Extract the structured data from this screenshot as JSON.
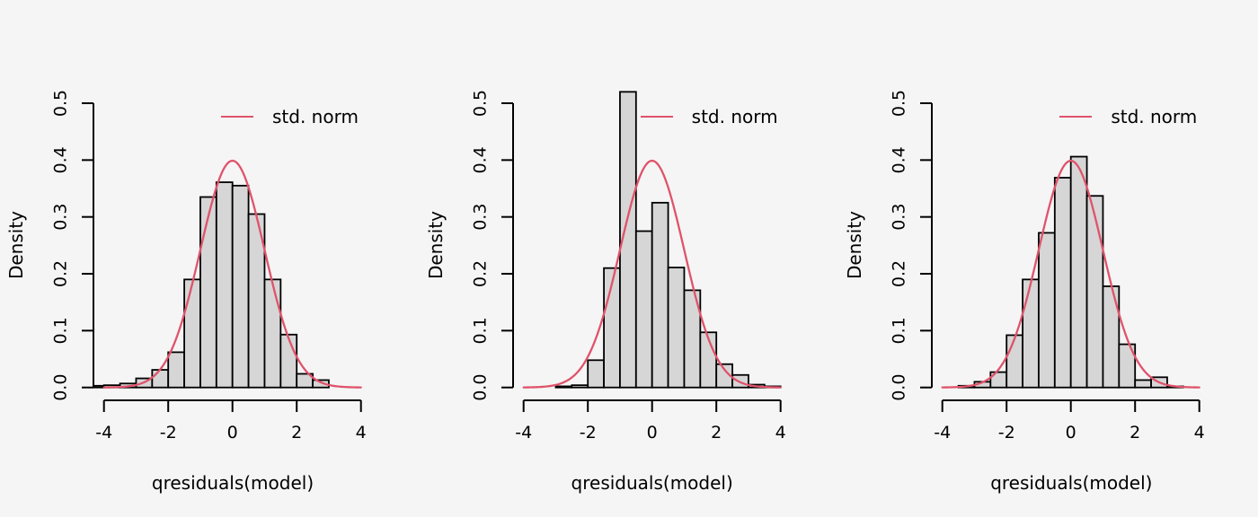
{
  "colors": {
    "background": "#f5f5f5",
    "bar_fill": "#d6d6d6",
    "bar_stroke": "#000000",
    "curve": "#DF536B",
    "axis": "#000000",
    "text": "#000000"
  },
  "chart_data": [
    {
      "type": "histogram",
      "title": "",
      "xlabel": "qresiduals(model)",
      "ylabel": "Density",
      "legend": {
        "label": "std. norm",
        "position": "topright"
      },
      "xlim": [
        -4,
        4
      ],
      "ylim": [
        0,
        0.5
      ],
      "xticks": [
        "-4",
        "-2",
        "0",
        "2",
        "4"
      ],
      "yticks": [
        "0.0",
        "0.1",
        "0.2",
        "0.3",
        "0.4",
        "0.5"
      ],
      "grid": false,
      "bin_width": 0.5,
      "bin_start": -4.5,
      "densities": [
        0.003,
        0.004,
        0.007,
        0.016,
        0.031,
        0.062,
        0.19,
        0.335,
        0.361,
        0.355,
        0.305,
        0.19,
        0.093,
        0.024,
        0.013
      ],
      "curve": {
        "name": "standard normal pdf",
        "x_range": [
          -4,
          4
        ],
        "peak": 0.3989
      }
    },
    {
      "type": "histogram",
      "title": "",
      "xlabel": "qresiduals(model)",
      "ylabel": "Density",
      "legend": {
        "label": "std. norm",
        "position": "topright"
      },
      "xlim": [
        -4,
        4
      ],
      "ylim": [
        0,
        0.5
      ],
      "xticks": [
        "-4",
        "-2",
        "0",
        "2",
        "4"
      ],
      "yticks": [
        "0.0",
        "0.1",
        "0.2",
        "0.3",
        "0.4",
        "0.5"
      ],
      "grid": false,
      "bin_width": 0.5,
      "bin_start": -3.0,
      "densities": [
        0.002,
        0.004,
        0.048,
        0.21,
        0.52,
        0.275,
        0.325,
        0.211,
        0.171,
        0.097,
        0.041,
        0.022,
        0.005,
        0.002
      ],
      "bar_exceeds_ylim": {
        "bin": [
          -1.0,
          -0.5
        ],
        "displayed_density": 0.52
      },
      "curve": {
        "name": "standard normal pdf",
        "x_range": [
          -4,
          4
        ],
        "peak": 0.3989
      }
    },
    {
      "type": "histogram",
      "title": "",
      "xlabel": "qresiduals(model)",
      "ylabel": "Density",
      "legend": {
        "label": "std. norm",
        "position": "topright"
      },
      "xlim": [
        -4,
        4
      ],
      "ylim": [
        0,
        0.5
      ],
      "xticks": [
        "-4",
        "-2",
        "0",
        "2",
        "4"
      ],
      "yticks": [
        "0.0",
        "0.1",
        "0.2",
        "0.3",
        "0.4",
        "0.5"
      ],
      "grid": false,
      "bin_width": 0.5,
      "bin_start": -3.5,
      "densities": [
        0.003,
        0.01,
        0.027,
        0.092,
        0.19,
        0.272,
        0.369,
        0.406,
        0.337,
        0.178,
        0.076,
        0.013,
        0.018,
        0.002
      ],
      "curve": {
        "name": "standard normal pdf",
        "x_range": [
          -4,
          4
        ],
        "peak": 0.3989
      }
    }
  ]
}
